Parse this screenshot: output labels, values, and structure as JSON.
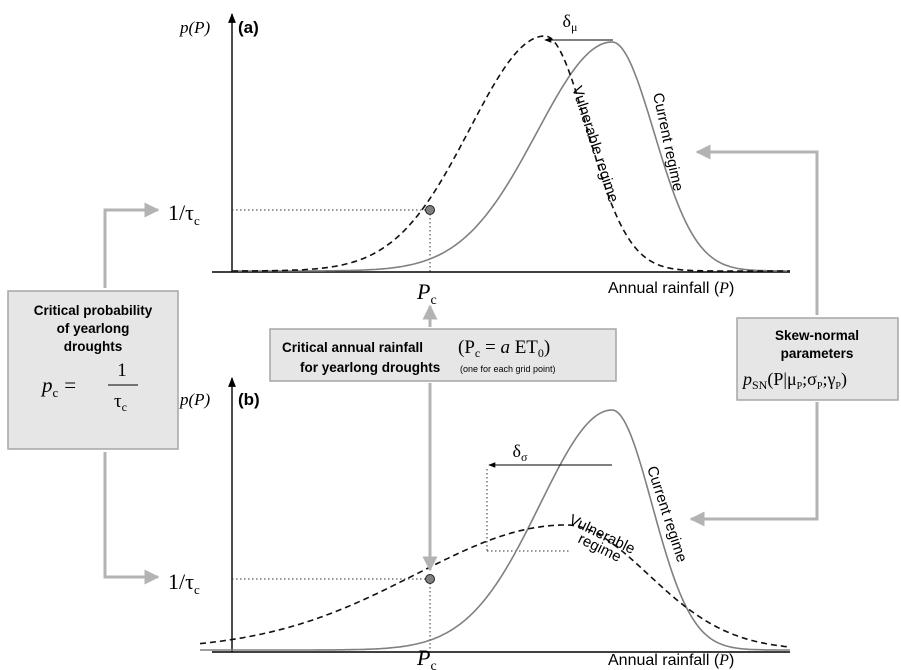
{
  "panel_a": {
    "label": "(a)",
    "y_axis_label": "p(P)",
    "x_axis_label": "Annual rainfall (P)",
    "x_axis_label_text": "Annual rainfall (",
    "x_axis_label_var": "P",
    "x_axis_label_close": ")",
    "threshold_label": "1/τ",
    "threshold_sub": "c",
    "critical_label": "P",
    "critical_sub": "c",
    "shift_label": "δ",
    "shift_sub": "μ",
    "current_curve_label": "Current regime",
    "vulnerable_curve_label": "Vulnerable regime"
  },
  "panel_b": {
    "label": "(b)",
    "y_axis_label": "p(P)",
    "x_axis_label_text": "Annual rainfall (",
    "x_axis_label_var": "P",
    "x_axis_label_close": ")",
    "threshold_label": "1/τ",
    "threshold_sub": "c",
    "critical_label": "P",
    "critical_sub": "c",
    "shift_label": "δ",
    "shift_sub": "σ",
    "current_curve_label": "Current regime",
    "vulnerable_curve_label_1": "Vulnerable",
    "vulnerable_curve_label_2": "regime"
  },
  "box_critical_probability": {
    "line1": "Critical probability",
    "line2": "of yearlong",
    "line3": "droughts",
    "formula_lhs": "p",
    "formula_lhs_sub": "c",
    "formula_eq": "=",
    "formula_num": "1",
    "formula_den": "τ",
    "formula_den_sub": "c"
  },
  "box_critical_rainfall": {
    "line1": "Critical annual rainfall",
    "formula": "(P",
    "formula_sub": "c",
    "formula_rest_1": " = ",
    "formula_a": "a",
    "formula_rest_2": " ET",
    "formula_et_sub": "0",
    "formula_close": ")",
    "line2": "for yearlong droughts",
    "note": "(one for each grid point)"
  },
  "box_skew_normal": {
    "line1": "Skew-normal",
    "line2": "parameters",
    "formula_p": "p",
    "formula_p_sub": "SN",
    "formula_open": "(P|μ",
    "formula_mu_sub": "P",
    "formula_sep1": ";σ",
    "formula_sigma_sub": "P",
    "formula_sep2": ";γ",
    "formula_gamma_sub": "P",
    "formula_close": ")"
  },
  "colors": {
    "axis": "#000000",
    "current_curve": "#808080",
    "vulnerable_curve": "#111111",
    "arrow": "#b3b3b3",
    "box_fill": "#e6e6e6",
    "box_stroke": "#a6a6a6",
    "point_fill": "#808080"
  }
}
